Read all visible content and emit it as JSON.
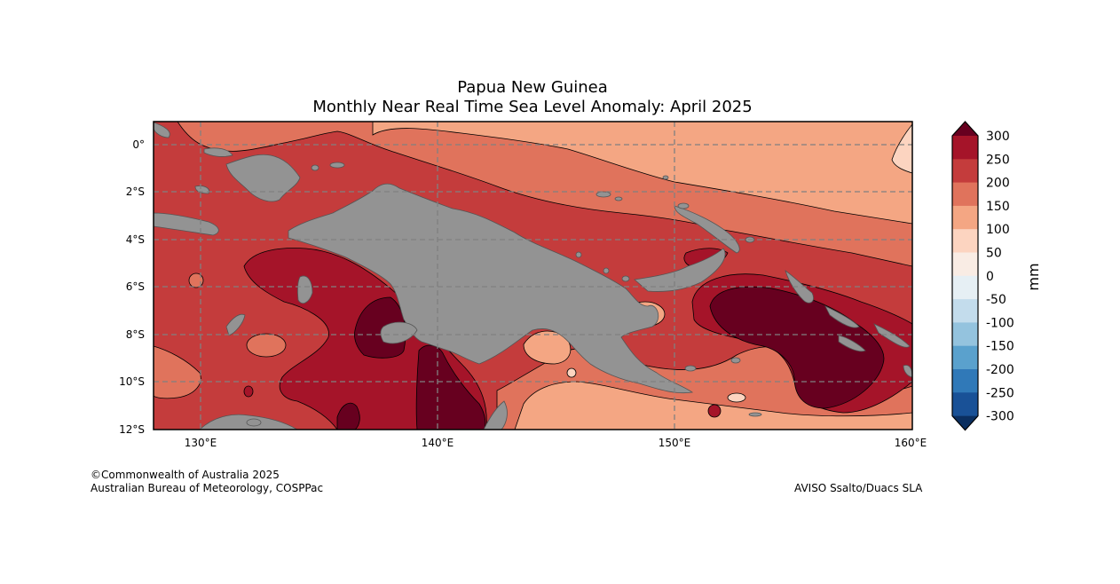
{
  "title": "Papua New Guinea",
  "subtitle": "Monthly Near Real Time Sea Level Anomaly: April 2025",
  "map": {
    "lon_ticks": [
      "130°E",
      "140°E",
      "150°E",
      "160°E"
    ],
    "lat_ticks": [
      "0°",
      "2°S",
      "4°S",
      "6°S",
      "8°S",
      "10°S",
      "12°S"
    ],
    "lon_range": [
      128,
      160
    ],
    "lat_range": [
      1,
      -12
    ],
    "land_color": "#939393",
    "grid": true
  },
  "colorbar": {
    "unit": "mm",
    "labels": [
      "300",
      "250",
      "200",
      "150",
      "100",
      "50",
      "0",
      "-50",
      "-100",
      "-150",
      "-200",
      "-250",
      "-300"
    ],
    "colors": {
      "extend_high": "#67001f",
      "250_300": "#a51429",
      "200_250": "#c43c3c",
      "150_200": "#e0735c",
      "100_150": "#f4a683",
      "50_100": "#fcd4c0",
      "0_50": "#f9ece4",
      "-50_0": "#e6eff4",
      "-100_-50": "#c3dcec",
      "-150_-100": "#94c3de",
      "-200_-150": "#5aa1cd",
      "-250_-200": "#3079b8",
      "-300_-250": "#195197",
      "extend_low": "#0b2f60"
    }
  },
  "credits": {
    "left_line1": "©Commonwealth of Australia 2025",
    "left_line2": "Australian Bureau of Meteorology, COSPPac",
    "right": "AVISO Ssalto/Duacs SLA"
  }
}
